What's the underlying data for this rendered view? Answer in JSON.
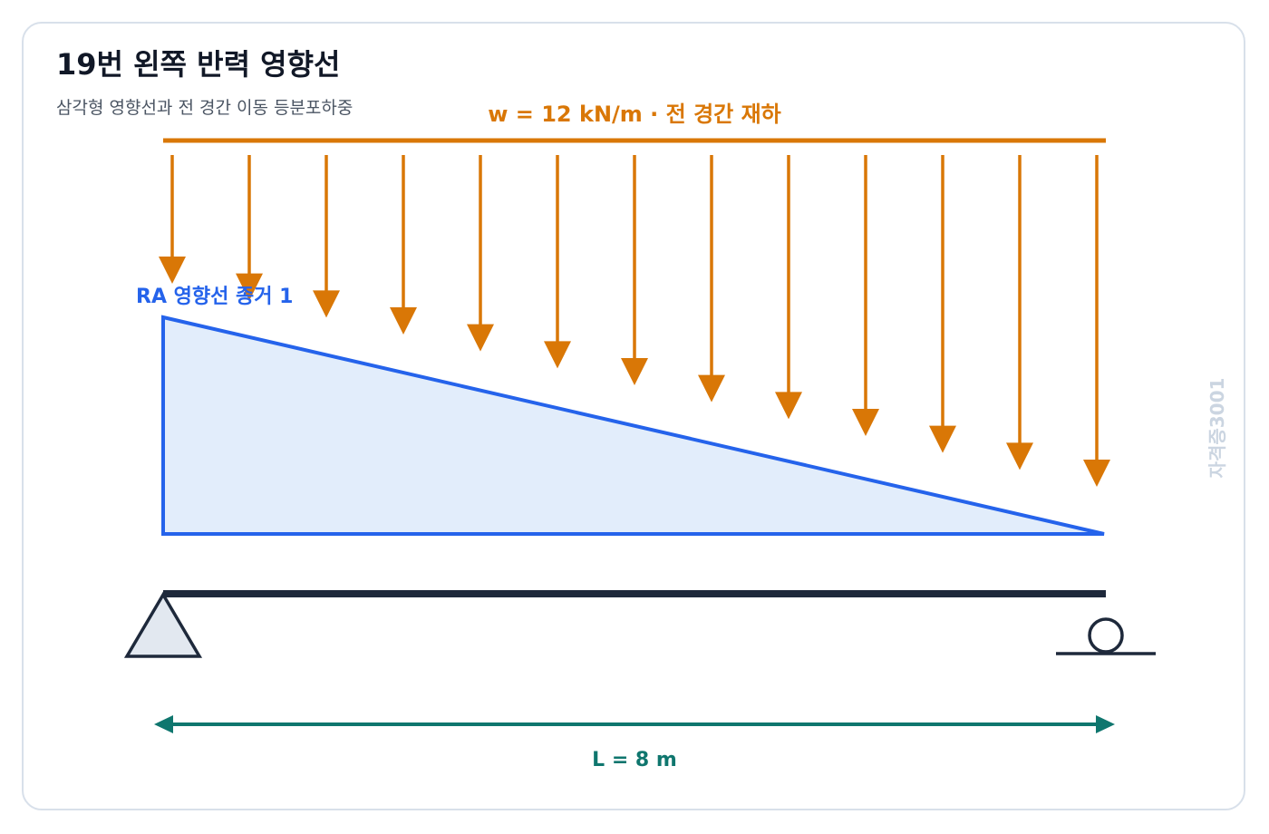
{
  "header": {
    "title": "19번 왼쪽 반력 영향선",
    "subtitle": "삼각형 영향선과 전 경간 이동 등분포하중"
  },
  "diagram": {
    "load_label": "w = 12 kN/m · 전 경간 재하",
    "influence_label": "RA 영향선 종거 1",
    "span_label": "L = 8 m",
    "watermark": "자격증3001",
    "span_m": 8,
    "load_kN_per_m": 12,
    "influence_ordinate_left": 1,
    "influence_ordinate_right": 0,
    "load_arrow_count": 13,
    "supports": {
      "left": "pin",
      "right": "roller"
    },
    "colors": {
      "load": "#d97706",
      "influence_line": "#2563eb",
      "influence_fill": "#e2edfb",
      "beam": "#1e293b",
      "support_fill": "#e2e8f0",
      "dimension": "#0f766e",
      "watermark": "#cbd5e1",
      "card_border": "#d8e0ea"
    }
  }
}
